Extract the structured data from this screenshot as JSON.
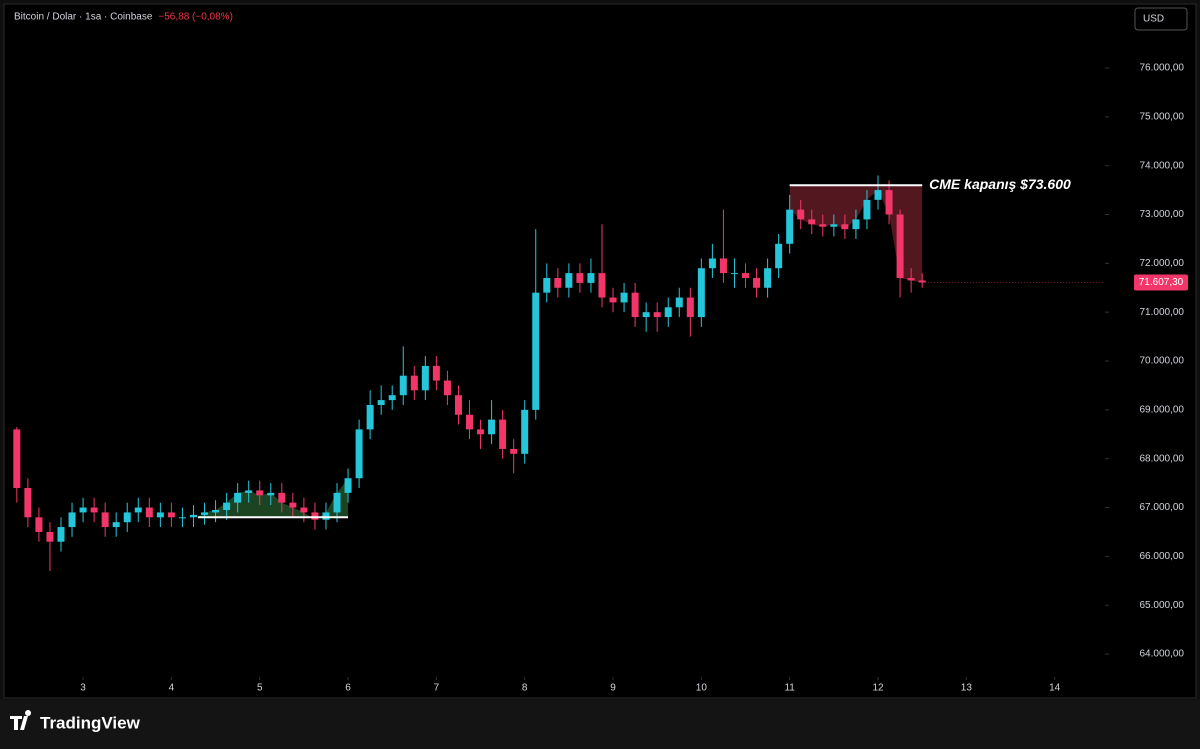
{
  "brand": "TradingView",
  "chart_data": {
    "type": "candlestick",
    "title": "Bitcoin / Dolar · 1sa · Coinbase",
    "change": "−56,88 (−0,08%)",
    "currency": "USD",
    "up_color": "#26c6da",
    "down_color": "#f23669",
    "grid": false,
    "xlim": [
      2.15,
      14.57
    ],
    "ylim": [
      63530,
      77290
    ],
    "xticks": [
      3,
      4,
      5,
      6,
      7,
      8,
      9,
      10,
      11,
      12,
      13,
      14
    ],
    "yticks": [
      {
        "value": 64000,
        "label": "64.000,00"
      },
      {
        "value": 65000,
        "label": "65.000,00"
      },
      {
        "value": 66000,
        "label": "66.000,00"
      },
      {
        "value": 67000,
        "label": "67.000,00"
      },
      {
        "value": 68000,
        "label": "68.000,00"
      },
      {
        "value": 69000,
        "label": "69.000,00"
      },
      {
        "value": 70000,
        "label": "70.000,00"
      },
      {
        "value": 71000,
        "label": "71.000,00"
      },
      {
        "value": 72000,
        "label": "72.000,00"
      },
      {
        "value": 73000,
        "label": "73.000,00"
      },
      {
        "value": 74000,
        "label": "74.000,00"
      },
      {
        "value": 75000,
        "label": "75.000,00"
      },
      {
        "value": 76000,
        "label": "76.000,00"
      }
    ],
    "last_price": {
      "value": 71607.3,
      "label": "71.607,30"
    },
    "x": [
      2.25,
      2.375,
      2.5,
      2.625,
      2.75,
      2.875,
      3,
      3.125,
      3.25,
      3.375,
      3.5,
      3.625,
      3.75,
      3.875,
      4,
      4.125,
      4.25,
      4.375,
      4.5,
      4.625,
      4.75,
      4.875,
      5,
      5.125,
      5.25,
      5.375,
      5.5,
      5.625,
      5.75,
      5.875,
      6,
      6.125,
      6.25,
      6.375,
      6.5,
      6.625,
      6.75,
      6.875,
      7,
      7.125,
      7.25,
      7.375,
      7.5,
      7.625,
      7.75,
      7.875,
      8,
      8.125,
      8.25,
      8.375,
      8.5,
      8.625,
      8.75,
      8.875,
      9,
      9.125,
      9.25,
      9.375,
      9.5,
      9.625,
      9.75,
      9.875,
      10,
      10.125,
      10.25,
      10.375,
      10.5,
      10.625,
      10.75,
      10.875,
      11,
      11.125,
      11.25,
      11.375,
      11.5,
      11.625,
      11.75,
      11.875,
      12,
      12.125,
      12.25,
      12.375,
      12.5
    ],
    "open": [
      68600,
      67400,
      66800,
      66500,
      66300,
      66600,
      66900,
      67000,
      66900,
      66600,
      66700,
      66900,
      67000,
      66800,
      66900,
      66800,
      66800,
      66850,
      66900,
      66950,
      67100,
      67300,
      67350,
      67250,
      67300,
      67100,
      67000,
      66900,
      66750,
      66900,
      67300,
      67600,
      68600,
      69100,
      69200,
      69300,
      69700,
      69400,
      69900,
      69600,
      69300,
      68900,
      68600,
      68500,
      68800,
      68200,
      68100,
      69000,
      71400,
      71700,
      71500,
      71800,
      71600,
      71800,
      71300,
      71200,
      71400,
      70900,
      71000,
      70900,
      71100,
      71300,
      70900,
      71900,
      72100,
      71800,
      71800,
      71700,
      71500,
      71900,
      72400,
      73100,
      72900,
      72800,
      72750,
      72800,
      72700,
      72900,
      73300,
      73500,
      73000,
      71700,
      71650
    ],
    "high": [
      68650,
      67600,
      67000,
      66700,
      66800,
      67100,
      67200,
      67200,
      67100,
      66900,
      67100,
      67200,
      67200,
      67100,
      67100,
      67000,
      67050,
      67100,
      67150,
      67300,
      67500,
      67550,
      67550,
      67500,
      67500,
      67300,
      67200,
      67100,
      67100,
      67500,
      67800,
      68800,
      69400,
      69500,
      69500,
      70300,
      69900,
      70100,
      70100,
      69800,
      69500,
      69200,
      68800,
      69200,
      69000,
      68400,
      69200,
      72700,
      72000,
      71900,
      72000,
      72000,
      72100,
      72800,
      71500,
      71600,
      71600,
      71200,
      71200,
      71300,
      71500,
      71500,
      72100,
      72400,
      73100,
      72100,
      72000,
      71900,
      72100,
      72600,
      73400,
      73300,
      73100,
      73000,
      73000,
      73000,
      73100,
      73500,
      73800,
      73700,
      73100,
      71900,
      71800
    ],
    "low": [
      67100,
      66600,
      66300,
      65700,
      66100,
      66400,
      66700,
      66700,
      66400,
      66400,
      66500,
      66700,
      66600,
      66600,
      66600,
      66600,
      66600,
      66650,
      66700,
      66750,
      66900,
      67100,
      67050,
      67050,
      66900,
      66800,
      66700,
      66550,
      66550,
      66700,
      67100,
      67400,
      68400,
      68900,
      69000,
      69100,
      69200,
      69200,
      69400,
      69100,
      68700,
      68400,
      68200,
      68300,
      68000,
      67700,
      67900,
      68800,
      71200,
      71300,
      71300,
      71400,
      71400,
      71100,
      71000,
      71000,
      70700,
      70600,
      70600,
      70700,
      70900,
      70500,
      70700,
      71700,
      71600,
      71500,
      71500,
      71300,
      71300,
      71700,
      72200,
      72700,
      72600,
      72550,
      72550,
      72500,
      72500,
      72700,
      73100,
      72800,
      71300,
      71400,
      71500
    ],
    "close": [
      67400,
      66800,
      66500,
      66300,
      66600,
      66900,
      67000,
      66900,
      66600,
      66700,
      66900,
      67000,
      66800,
      66900,
      66800,
      66800,
      66850,
      66900,
      66950,
      67100,
      67300,
      67350,
      67250,
      67300,
      67100,
      67000,
      66900,
      66750,
      66900,
      67300,
      67600,
      68600,
      69100,
      69200,
      69300,
      69700,
      69400,
      69900,
      69600,
      69300,
      68900,
      68600,
      68500,
      68800,
      68200,
      68100,
      69000,
      71400,
      71700,
      71500,
      71800,
      71600,
      71800,
      71300,
      71200,
      71400,
      70900,
      71000,
      70900,
      71100,
      71300,
      70900,
      71900,
      72100,
      71800,
      71800,
      71700,
      71500,
      71900,
      72400,
      73100,
      72900,
      72800,
      72750,
      72800,
      72700,
      72900,
      73300,
      73500,
      73000,
      71700,
      71650,
      71607.3
    ],
    "levels": [
      {
        "level": 66800,
        "x": [
          4.3,
          6
        ],
        "color": "#1f4a26"
      },
      {
        "level": 73600,
        "x": [
          11,
          12.5
        ],
        "color": "#5c1a24",
        "label": "CME kapanış $73.600"
      }
    ]
  }
}
